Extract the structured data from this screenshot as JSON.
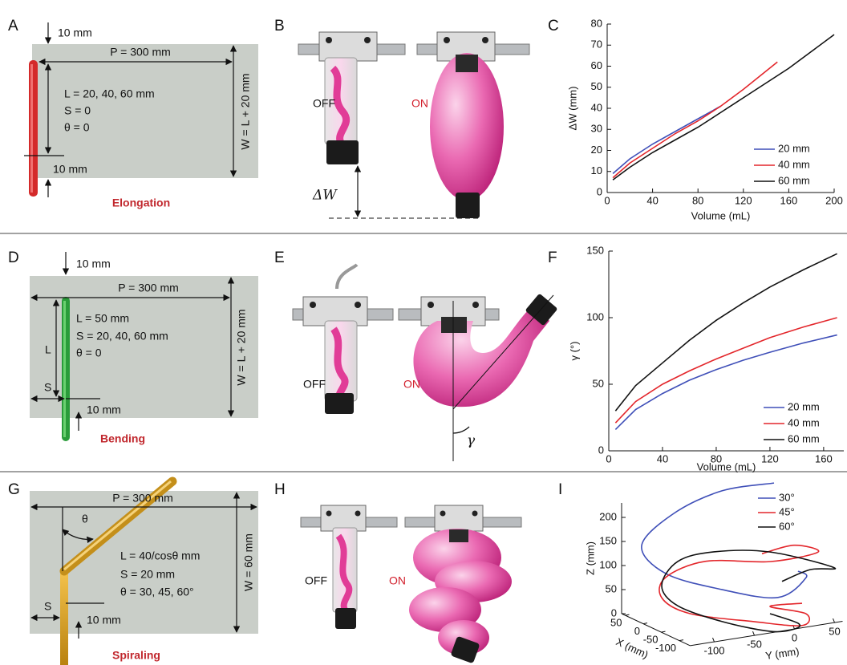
{
  "panel_labels": [
    "A",
    "B",
    "C",
    "D",
    "E",
    "F",
    "G",
    "H",
    "I"
  ],
  "panel_a": {
    "top_gap": "10 mm",
    "length_p": "P = 300 mm",
    "params": [
      "L = 20, 40, 60 mm",
      "S = 0",
      "θ = 0"
    ],
    "bottom_gap": "10 mm",
    "width_w": "W = L + 20 mm",
    "caption": "Elongation"
  },
  "panel_b": {
    "off": "OFF",
    "on": "ON",
    "delta": "ΔW"
  },
  "panel_d": {
    "top_gap": "10 mm",
    "length_p": "P = 300 mm",
    "length_l": "L",
    "params": [
      "L = 50 mm",
      "S = 20, 40, 60 mm",
      "θ = 0"
    ],
    "offset_s": "S",
    "bottom_gap": "10 mm",
    "width_w": "W = L + 20 mm",
    "caption": "Bending"
  },
  "panel_e": {
    "off": "OFF",
    "on": "ON",
    "angle": "γ"
  },
  "panel_g": {
    "length_p": "P = 300 mm",
    "angle": "θ",
    "params": [
      "L = 40/cosθ mm",
      "S = 20 mm",
      "θ = 30, 45, 60°"
    ],
    "offset_s": "S",
    "bottom_gap": "10 mm",
    "width_w": "W = 60 mm",
    "caption": "Spiraling"
  },
  "panel_h": {
    "off": "OFF",
    "on": "ON"
  },
  "chart_data": [
    {
      "type": "line",
      "xlabel": "Volume (mL)",
      "ylabel": "ΔW (mm)",
      "xlim": [
        0,
        200
      ],
      "ylim": [
        0,
        80
      ],
      "xticks": [
        0,
        40,
        80,
        120,
        160,
        200
      ],
      "yticks": [
        0,
        10,
        20,
        30,
        40,
        50,
        60,
        70,
        80
      ],
      "legend": "lower right",
      "series": [
        {
          "name": "20 mm",
          "color": "#3f4fb8",
          "x": [
            5,
            20,
            40,
            60,
            80,
            100
          ],
          "values": [
            9,
            16,
            23,
            29,
            35,
            41
          ]
        },
        {
          "name": "40 mm",
          "color": "#e3262b",
          "x": [
            5,
            20,
            40,
            60,
            80,
            100,
            120,
            150
          ],
          "values": [
            7,
            14,
            21,
            28,
            34,
            41,
            49,
            62
          ]
        },
        {
          "name": "60 mm",
          "color": "#111111",
          "x": [
            5,
            20,
            40,
            60,
            80,
            100,
            120,
            140,
            160,
            180,
            200
          ],
          "values": [
            6,
            12,
            19,
            25,
            31,
            38,
            45,
            52,
            59,
            67,
            75
          ]
        }
      ]
    },
    {
      "type": "line",
      "xlabel": "Volume (mL)",
      "ylabel": "γ (°)",
      "xlim": [
        0,
        175
      ],
      "ylim": [
        0,
        150
      ],
      "xticks": [
        0,
        40,
        80,
        120,
        160
      ],
      "yticks": [
        0,
        50,
        100,
        150
      ],
      "legend": "lower right",
      "series": [
        {
          "name": "20 mm",
          "color": "#3f4fb8",
          "x": [
            5,
            20,
            40,
            60,
            80,
            100,
            120,
            145,
            170
          ],
          "values": [
            16,
            31,
            43,
            53,
            61,
            68,
            74,
            81,
            87
          ]
        },
        {
          "name": "40 mm",
          "color": "#e3262b",
          "x": [
            5,
            20,
            40,
            60,
            80,
            100,
            120,
            145,
            170
          ],
          "values": [
            21,
            37,
            50,
            60,
            69,
            77,
            85,
            93,
            100
          ]
        },
        {
          "name": "60 mm",
          "color": "#111111",
          "x": [
            5,
            20,
            40,
            60,
            80,
            100,
            120,
            145,
            170
          ],
          "values": [
            30,
            49,
            66,
            83,
            98,
            111,
            123,
            136,
            148
          ]
        }
      ]
    },
    {
      "type": "line3d",
      "xlabel": "X (mm)",
      "ylabel": "Y (mm)",
      "zlabel": "Z (mm)",
      "xlim": [
        -130,
        60
      ],
      "ylim": [
        -130,
        60
      ],
      "zlim": [
        0,
        230
      ],
      "xticks": [
        50,
        0,
        -50,
        -100
      ],
      "yticks": [
        -100,
        -50,
        0,
        50
      ],
      "zticks": [
        0,
        50,
        100,
        150,
        200
      ],
      "legend": "upper right",
      "series": [
        {
          "name": "30°",
          "color": "#3f4fb8",
          "x": [
            0,
            0,
            0,
            0,
            0,
            0,
            -60,
            -60,
            -60
          ],
          "y": [
            33,
            -32,
            -92,
            -132,
            -102,
            -32,
            11,
            46,
            36
          ],
          "z": [
            249,
            250,
            219,
            163,
            97,
            45,
            38,
            70,
            86
          ]
        },
        {
          "name": "45°",
          "color": "#e3262b",
          "x": [
            0,
            0,
            0,
            0,
            0,
            0,
            0,
            -60,
            -120,
            -120,
            -120,
            -60,
            -60
          ],
          "y": [
            18,
            58,
            88,
            28,
            -52,
            -102,
            -107,
            -99,
            -46,
            14,
            19,
            1,
            41
          ],
          "z": [
            106,
            113,
            91,
            87,
            109,
            89,
            48,
            34,
            24,
            0,
            23,
            22,
            18
          ]
        },
        {
          "name": "60°",
          "color": "#111111",
          "x": [
            0,
            0,
            0,
            0,
            0,
            0,
            0,
            -60,
            -120,
            -130,
            -130,
            -120,
            -60
          ],
          "y": [
            43,
            78,
            108,
            28,
            -42,
            -87,
            -107,
            -114,
            -86,
            -30,
            0,
            9,
            1
          ],
          "z": [
            42,
            57,
            53,
            107,
            126,
            118,
            73,
            54,
            35,
            3,
            0,
            6,
            7
          ]
        }
      ]
    }
  ]
}
